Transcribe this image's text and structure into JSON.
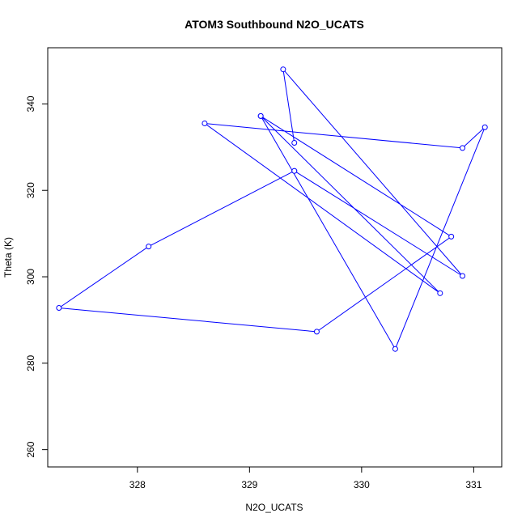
{
  "chart_data": {
    "type": "line",
    "title": "ATOM3 Southbound N2O_UCATS",
    "xlabel": "N2O_UCATS",
    "ylabel": "Theta (K)",
    "xlim": [
      327.2,
      331.25
    ],
    "ylim": [
      256,
      353
    ],
    "xticks": [
      328,
      329,
      330,
      331
    ],
    "yticks": [
      260,
      280,
      300,
      320,
      340
    ],
    "grid": false,
    "line_color": "#0000ff",
    "markers": "open-circle",
    "series": [
      {
        "x": [
          329.4,
          329.3,
          330.9,
          329.4,
          329.4,
          328.1,
          327.3,
          329.6,
          330.8,
          329.1,
          330.3,
          331.1,
          330.9,
          328.6,
          330.7,
          329.1
        ],
        "y": [
          331,
          348,
          300.2,
          324.5,
          324.5,
          307,
          292.8,
          287.3,
          309.3,
          337.2,
          283.3,
          334.6,
          329.8,
          335.5,
          296.2,
          337.2
        ]
      }
    ]
  }
}
